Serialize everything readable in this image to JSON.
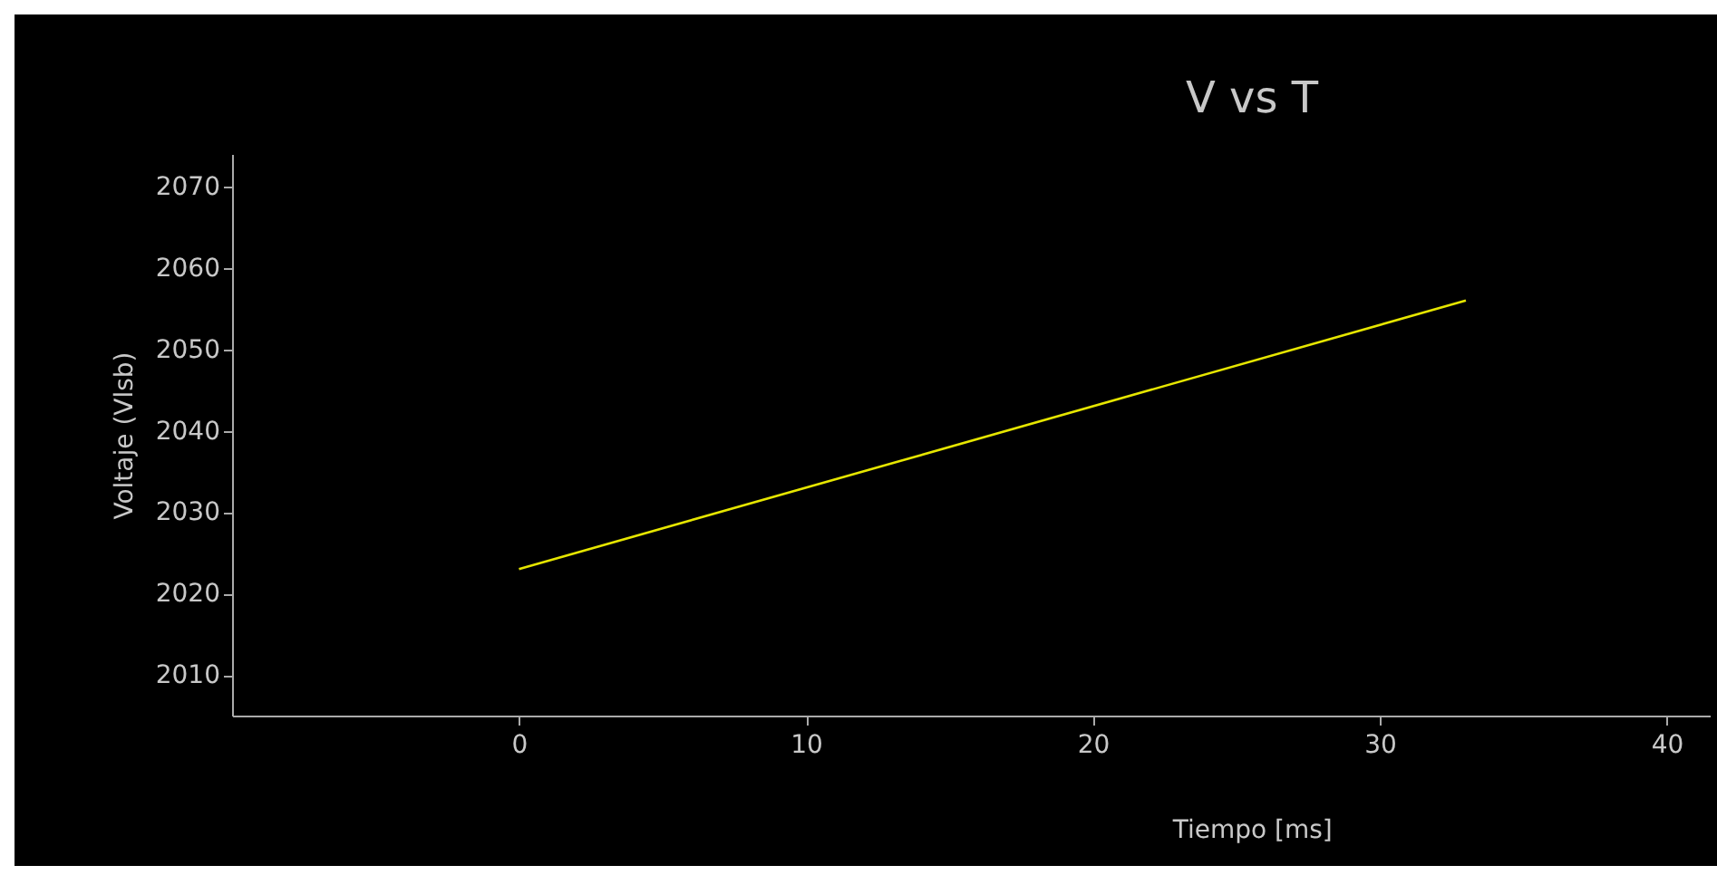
{
  "chart_data": {
    "type": "line",
    "title": "V vs T",
    "xlabel": "Tiempo [ms]",
    "ylabel": "Voltaje (Vlsb)",
    "x": [
      0,
      33
    ],
    "series": [
      {
        "color": "#e6e600",
        "values": [
          2023,
          2056
        ]
      }
    ],
    "xlim": [
      -10,
      41.5
    ],
    "xticks": [
      0,
      10,
      20,
      30,
      40
    ],
    "ylim": [
      2005,
      2074
    ],
    "yticks": [
      2010,
      2020,
      2030,
      2040,
      2050,
      2060,
      2070
    ],
    "grid": false,
    "legend": false,
    "marker": "none",
    "line_style": "solid"
  }
}
